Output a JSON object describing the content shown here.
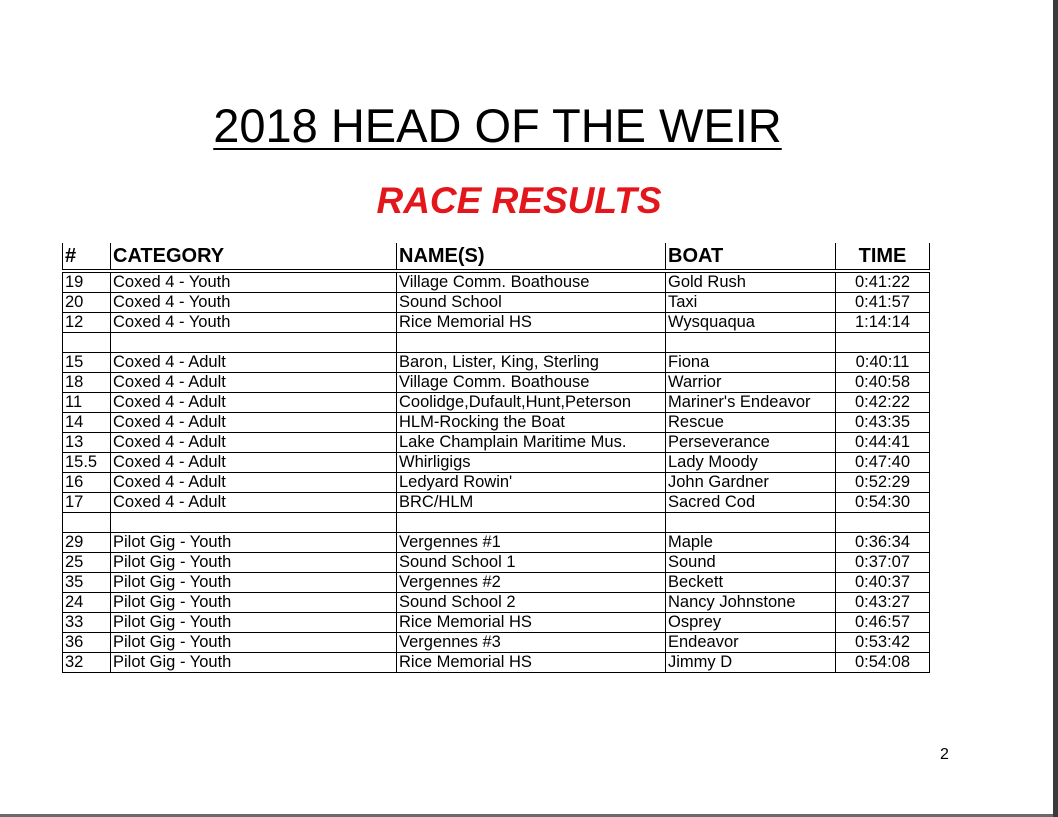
{
  "title": "2018 HEAD OF THE WEIR",
  "subtitle": "RACE RESULTS",
  "page_number": "2",
  "columns": [
    "#",
    "CATEGORY",
    "NAME(S)",
    "BOAT",
    "TIME"
  ],
  "rows": [
    [
      "19",
      "Coxed 4 - Youth",
      "Village Comm. Boathouse",
      "Gold Rush",
      "0:41:22"
    ],
    [
      "20",
      "Coxed 4 - Youth",
      "Sound School",
      "Taxi",
      "0:41:57"
    ],
    [
      "12",
      "Coxed 4 - Youth",
      "Rice Memorial HS",
      "Wysquaqua",
      "1:14:14"
    ],
    [
      "",
      "",
      "",
      "",
      ""
    ],
    [
      "15",
      "Coxed 4 - Adult",
      "Baron, Lister, King, Sterling",
      "Fiona",
      "0:40:11"
    ],
    [
      "18",
      "Coxed 4 - Adult",
      "Village Comm. Boathouse",
      "Warrior",
      "0:40:58"
    ],
    [
      "11",
      "Coxed 4 - Adult",
      "Coolidge,Dufault,Hunt,Peterson",
      "Mariner's Endeavor",
      "0:42:22"
    ],
    [
      "14",
      "Coxed 4 - Adult",
      "HLM-Rocking the Boat",
      "Rescue",
      "0:43:35"
    ],
    [
      "13",
      "Coxed 4 - Adult",
      "Lake Champlain Maritime Mus.",
      "Perseverance",
      "0:44:41"
    ],
    [
      "15.5",
      "Coxed 4 - Adult",
      "Whirligigs",
      "Lady Moody",
      "0:47:40"
    ],
    [
      "16",
      "Coxed 4 - Adult",
      "Ledyard Rowin'",
      "John Gardner",
      "0:52:29"
    ],
    [
      "17",
      "Coxed 4 - Adult",
      "BRC/HLM",
      "Sacred Cod",
      "0:54:30"
    ],
    [
      "",
      "",
      "",
      "",
      ""
    ],
    [
      "29",
      "Pilot Gig - Youth",
      "Vergennes #1",
      "Maple",
      "0:36:34"
    ],
    [
      "25",
      "Pilot Gig - Youth",
      "Sound School 1",
      "Sound",
      "0:37:07"
    ],
    [
      "35",
      "Pilot Gig - Youth",
      "Vergennes #2",
      "Beckett",
      "0:40:37"
    ],
    [
      "24",
      "Pilot Gig - Youth",
      "Sound School 2",
      "Nancy Johnstone",
      "0:43:27"
    ],
    [
      "33",
      "Pilot Gig - Youth",
      "Rice Memorial HS",
      "Osprey",
      "0:46:57"
    ],
    [
      "36",
      "Pilot Gig - Youth",
      "Vergennes #3",
      "Endeavor",
      "0:53:42"
    ],
    [
      "32",
      "Pilot Gig - Youth",
      "Rice Memorial HS",
      "Jimmy D",
      "0:54:08"
    ]
  ]
}
